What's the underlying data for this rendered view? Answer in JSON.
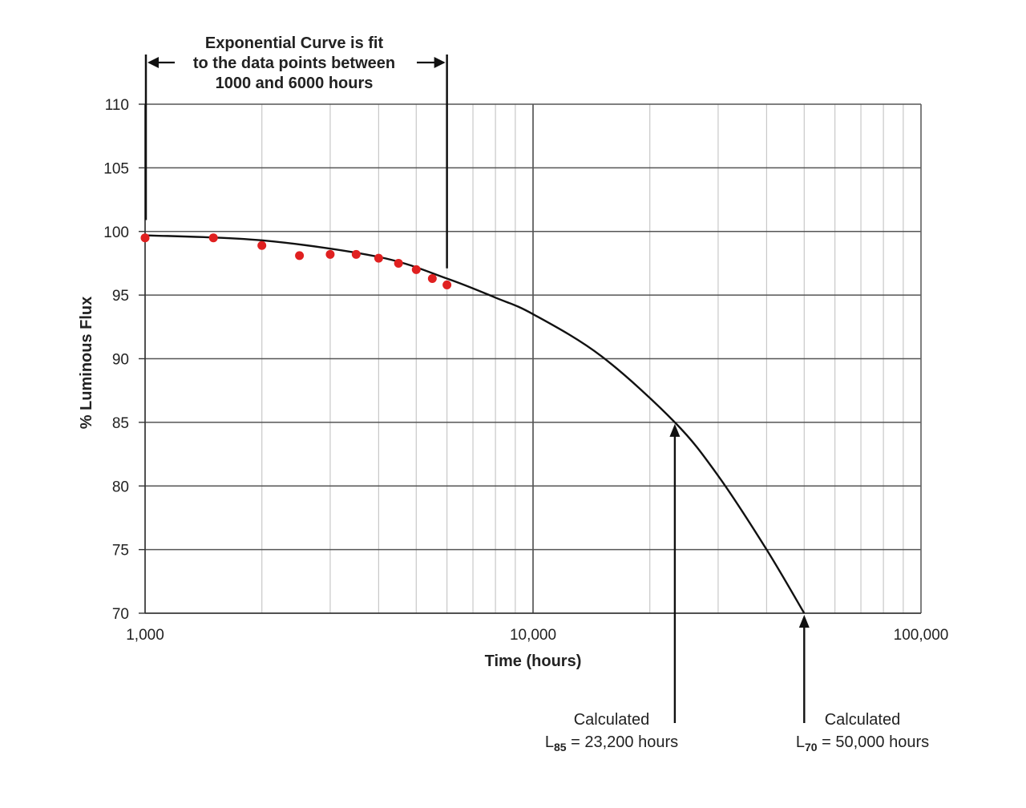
{
  "chart_data": {
    "type": "scatter",
    "x_scale": "log",
    "xlim": [
      1000,
      100000
    ],
    "ylim": [
      70,
      110
    ],
    "xlabel": "Time (hours)",
    "ylabel": "% Luminous Flux",
    "x_ticks": [
      1000,
      10000,
      100000
    ],
    "x_tick_labels": [
      "1,000",
      "10,000",
      "100,000"
    ],
    "y_ticks": [
      70,
      75,
      80,
      85,
      90,
      95,
      100,
      105,
      110
    ],
    "y_tick_labels": [
      "70",
      "75",
      "80",
      "85",
      "90",
      "95",
      "100",
      "105",
      "110"
    ],
    "grid": true,
    "series": [
      {
        "kind": "points",
        "color": "#e02020",
        "x": [
          1000,
          1500,
          2000,
          2500,
          3000,
          3500,
          4000,
          4500,
          5000,
          5500,
          6000
        ],
        "y": [
          99.5,
          99.5,
          98.9,
          98.1,
          98.2,
          98.2,
          97.9,
          97.5,
          97.0,
          96.3,
          95.8
        ]
      },
      {
        "kind": "fit-curve",
        "color": "#111111",
        "x": [
          1000,
          2000,
          4000,
          6000,
          8000,
          10000,
          15000,
          23200,
          30000,
          40000,
          50000
        ],
        "y": [
          99.7,
          99.3,
          98.0,
          96.3,
          94.8,
          93.5,
          90.2,
          85.0,
          80.8,
          75.0,
          70.0
        ]
      }
    ],
    "fit_range": [
      1000,
      6000
    ],
    "annotations": {
      "fit_note": [
        "Exponential Curve is fit",
        "to the data points between",
        "1000 and 6000 hours"
      ],
      "l85": {
        "x": 23200,
        "y": 85,
        "line1": "Calculated",
        "line2_prefix": "L",
        "line2_sub": "85",
        "line2_rest": " = 23,200 hours"
      },
      "l70": {
        "x": 50000,
        "y": 70,
        "line1": "Calculated",
        "line2_prefix": "L",
        "line2_sub": "70",
        "line2_rest": " = 50,000 hours"
      }
    }
  }
}
